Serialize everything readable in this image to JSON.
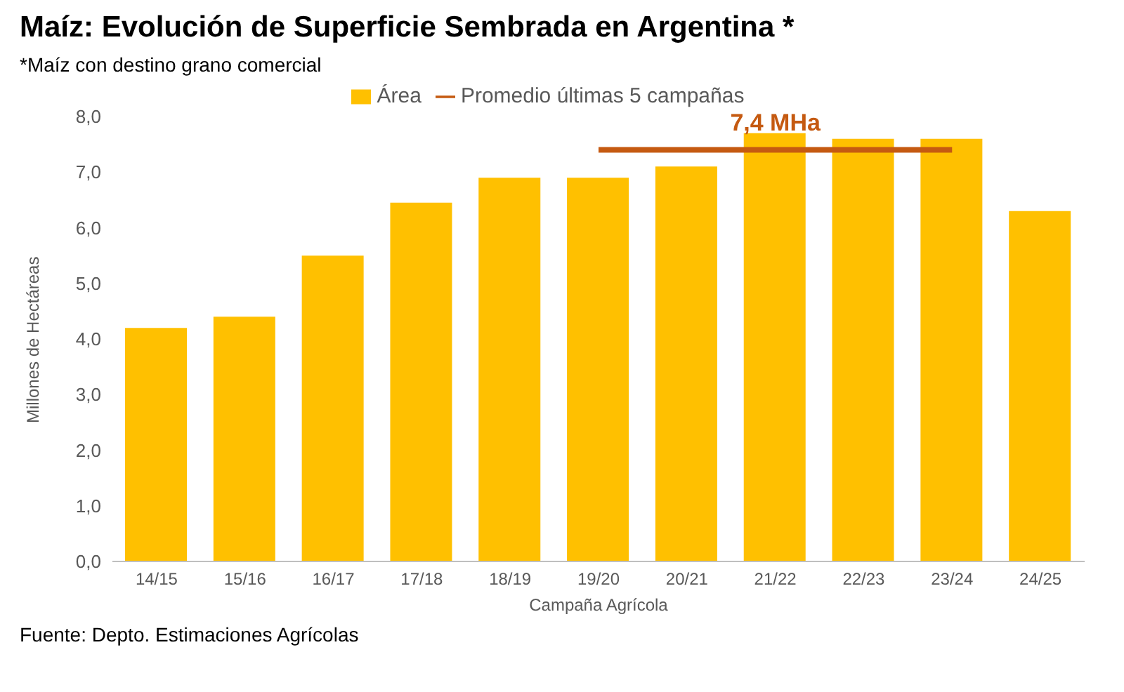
{
  "chart_data": {
    "type": "bar",
    "title": "Maíz: Evolución de Superficie Sembrada en Argentina *",
    "subtitle": "*Maíz con destino grano comercial",
    "xlabel": "Campaña Agrícola",
    "ylabel": "Millones de Hectáreas",
    "categories": [
      "14/15",
      "15/16",
      "16/17",
      "17/18",
      "18/19",
      "19/20",
      "20/21",
      "21/22",
      "22/23",
      "23/24",
      "24/25"
    ],
    "series": [
      {
        "name": "Área",
        "color": "#ffc000",
        "values": [
          4.2,
          4.4,
          5.5,
          6.45,
          6.9,
          6.9,
          7.1,
          7.7,
          7.6,
          7.6,
          6.3
        ]
      },
      {
        "name": "Promedio últimas 5 campañas",
        "type": "line",
        "color": "#c55a11",
        "values": [
          null,
          null,
          null,
          null,
          null,
          7.4,
          7.4,
          7.4,
          7.4,
          7.4,
          null
        ]
      }
    ],
    "ylim": [
      0,
      8
    ],
    "yticks": [
      {
        "value": 0,
        "label": "0,0"
      },
      {
        "value": 1,
        "label": "1,0"
      },
      {
        "value": 2,
        "label": "2,0"
      },
      {
        "value": 3,
        "label": "3,0"
      },
      {
        "value": 4,
        "label": "4,0"
      },
      {
        "value": 5,
        "label": "5,0"
      },
      {
        "value": 6,
        "label": "6,0"
      },
      {
        "value": 7,
        "label": "7,0"
      },
      {
        "value": 8,
        "label": "8,0"
      }
    ],
    "annotations": [
      {
        "text": "7,4 MHa",
        "x": "21/22",
        "y": 7.4
      },
      "Fuente: Depto. Estimaciones Agrícolas"
    ],
    "grid": false,
    "legend": "top"
  }
}
